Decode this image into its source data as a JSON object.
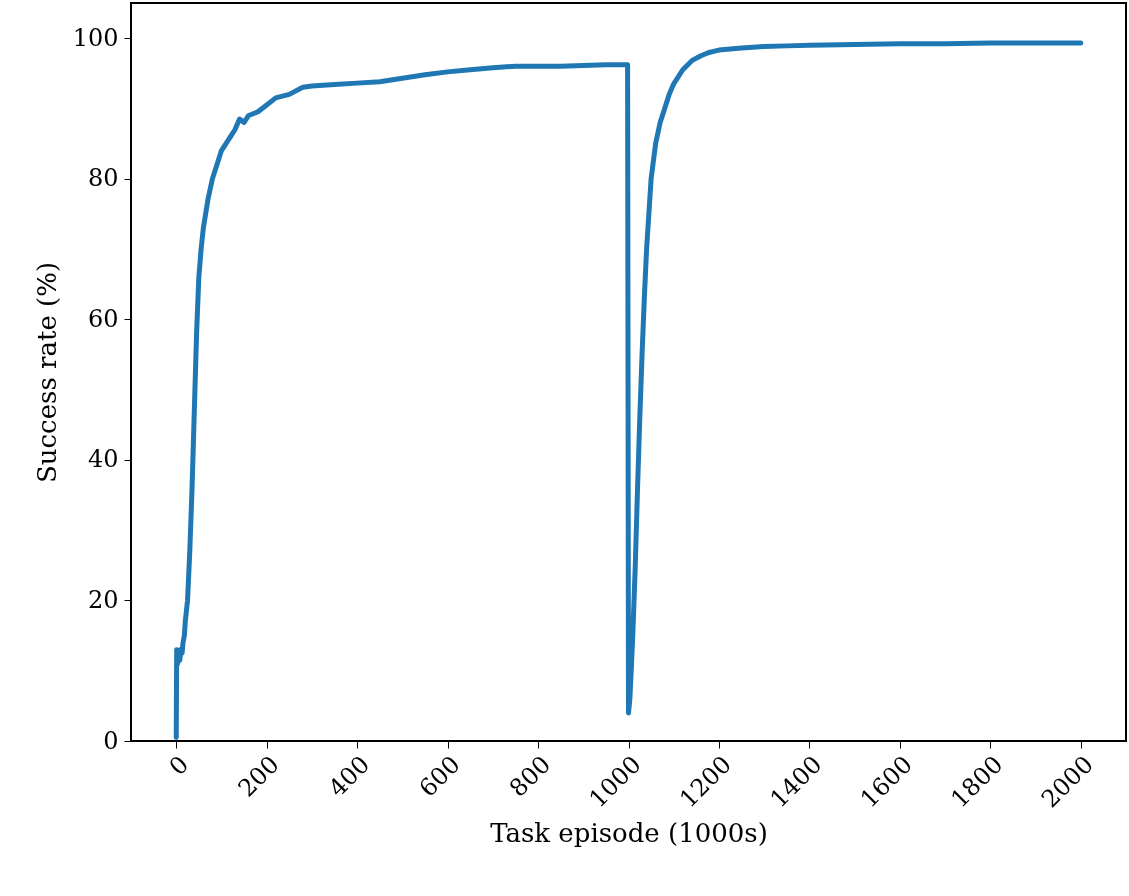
{
  "chart_data": {
    "type": "line",
    "xlabel": "Task episode (1000s)",
    "ylabel": "Success rate (%)",
    "x": [
      0,
      1,
      3,
      5,
      8,
      10,
      13,
      15,
      18,
      20,
      25,
      30,
      35,
      40,
      45,
      50,
      55,
      60,
      70,
      80,
      90,
      100,
      110,
      120,
      130,
      140,
      150,
      160,
      180,
      200,
      220,
      250,
      280,
      300,
      350,
      400,
      450,
      500,
      550,
      600,
      650,
      700,
      750,
      800,
      850,
      900,
      950,
      998,
      1000,
      1003,
      1006,
      1010,
      1015,
      1020,
      1025,
      1030,
      1035,
      1040,
      1045,
      1050,
      1060,
      1070,
      1080,
      1090,
      1100,
      1120,
      1140,
      1160,
      1180,
      1200,
      1250,
      1300,
      1350,
      1400,
      1500,
      1600,
      1700,
      1800,
      1900,
      2000
    ],
    "series": [
      {
        "color": "#1f77b4",
        "values": [
          0.5,
          13,
          11,
          12,
          11.5,
          13,
          12.5,
          14,
          15,
          17,
          20,
          27,
          36,
          47,
          58,
          66,
          70,
          73,
          77,
          80,
          82,
          84,
          85,
          86,
          87,
          88.5,
          88,
          89,
          89.5,
          90.5,
          91.5,
          92,
          93,
          93.2,
          93.4,
          93.6,
          93.8,
          94.3,
          94.8,
          95.2,
          95.5,
          95.8,
          96,
          96,
          96,
          96.1,
          96.2,
          96.2,
          4,
          6,
          10,
          16,
          25,
          36,
          46,
          55,
          63,
          70,
          75,
          80,
          85,
          88,
          90,
          92,
          93.5,
          95.5,
          96.8,
          97.5,
          98,
          98.3,
          98.6,
          98.8,
          98.9,
          99,
          99.1,
          99.2,
          99.2,
          99.3,
          99.3,
          99.3
        ]
      }
    ],
    "xlim": [
      -100,
      2100
    ],
    "ylim": [
      0,
      105
    ],
    "xticks": [
      0,
      200,
      400,
      600,
      800,
      1000,
      1200,
      1400,
      1600,
      1800,
      2000
    ],
    "yticks": [
      0,
      20,
      40,
      60,
      80,
      100
    ]
  }
}
